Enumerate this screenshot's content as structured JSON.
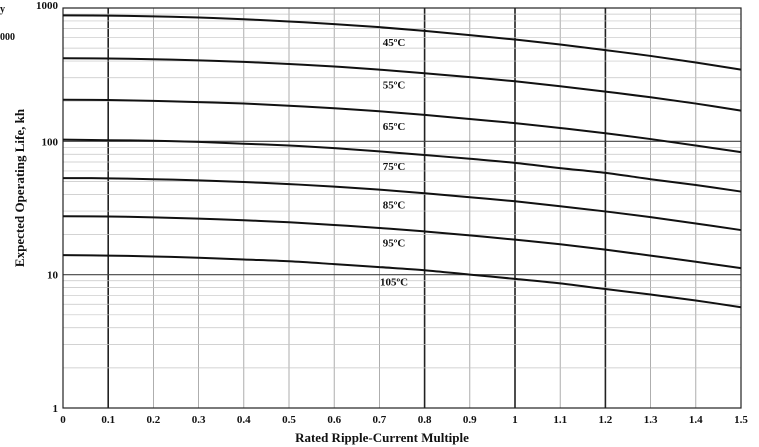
{
  "chart_data": {
    "type": "line",
    "xlabel": "Rated Ripple-Current Multiple",
    "ylabel": "Expected Operating Life, kh",
    "xlim": [
      0,
      1.5
    ],
    "ylim": [
      1,
      1000
    ],
    "y_scale": "log",
    "x_ticks": [
      0,
      0.1,
      0.2,
      0.3,
      0.4,
      0.5,
      0.6,
      0.7,
      0.8,
      0.9,
      1,
      1.1,
      1.2,
      1.3,
      1.4,
      1.5
    ],
    "x_tick_labels": [
      "0",
      "0.1",
      "0.2",
      "0.3",
      "0.4",
      "0.5",
      "0.6",
      "0.7",
      "0.8",
      "0.9",
      "1",
      "1.1",
      "1.2",
      "1.3",
      "1.4",
      "1.5"
    ],
    "y_ticks": [
      1,
      10,
      100,
      1000
    ],
    "y_tick_labels": [
      "1",
      "10",
      "100",
      "1000"
    ],
    "grid": true,
    "major_x_gridlines": [
      0.1,
      0.8,
      1,
      1.2
    ],
    "line_color": "#111111",
    "grid_color": "#9a9a9a",
    "cropped_left_text": [
      "y",
      "000"
    ],
    "x": [
      0,
      0.1,
      0.2,
      0.3,
      0.4,
      0.5,
      0.6,
      0.7,
      0.8,
      0.9,
      1.0,
      1.1,
      1.2,
      1.3,
      1.4,
      1.5
    ],
    "series": [
      {
        "name": "45ºC",
        "values": [
          880,
          876,
          865,
          848,
          823,
          792,
          757,
          718,
          673,
          626,
          580,
          532,
          483,
          437,
          390,
          345
        ]
      },
      {
        "name": "55ºC",
        "values": [
          420,
          418,
          413,
          405,
          394,
          380,
          364,
          345,
          324,
          303,
          282,
          259,
          236,
          214,
          192,
          170
        ]
      },
      {
        "name": "65ºC",
        "values": [
          205,
          204,
          201,
          197,
          192,
          185,
          177,
          168,
          158,
          147,
          137,
          126,
          115,
          104,
          93,
          83
        ]
      },
      {
        "name": "75ºC",
        "values": [
          103,
          102,
          101,
          99,
          96,
          93,
          89,
          84,
          79,
          74,
          69,
          63,
          58,
          52,
          47,
          42
        ]
      },
      {
        "name": "85ºC",
        "values": [
          53,
          52.8,
          52,
          51,
          49.5,
          47.8,
          45.7,
          43.4,
          40.8,
          38.1,
          35.5,
          32.6,
          29.8,
          27.0,
          24.2,
          21.6
        ]
      },
      {
        "name": "95ºC",
        "values": [
          27.4,
          27.3,
          26.9,
          26.3,
          25.6,
          24.7,
          23.6,
          22.4,
          21.1,
          19.7,
          18.3,
          16.9,
          15.4,
          13.9,
          12.5,
          11.2
        ]
      },
      {
        "name": "105ºC",
        "values": [
          14.0,
          13.9,
          13.7,
          13.4,
          13.0,
          12.6,
          12.0,
          11.4,
          10.8,
          10.0,
          9.3,
          8.6,
          7.8,
          7.1,
          6.4,
          5.7
        ]
      }
    ]
  }
}
